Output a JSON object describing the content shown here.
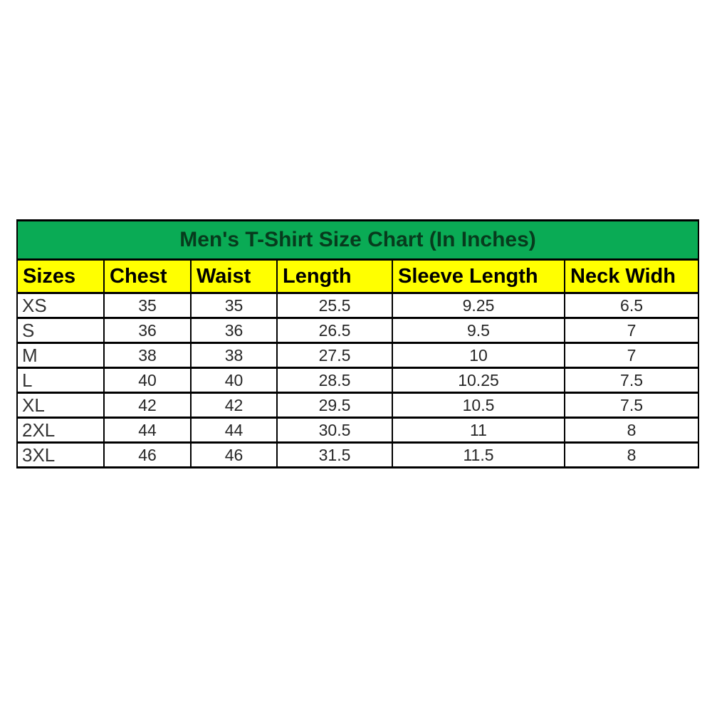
{
  "colors": {
    "title_bg": "#0aab55",
    "header_bg": "#ffff00",
    "border": "#000000",
    "title_text": "#000000",
    "data_text": "#262626",
    "page_bg": "#ffffff"
  },
  "chart_data": {
    "type": "table",
    "title": "Men's T-Shirt Size Chart (In Inches)",
    "columns": [
      "Sizes",
      "Chest",
      "Waist",
      "Length",
      "Sleeve Length",
      "Neck Widh"
    ],
    "rows": [
      [
        "XS",
        "35",
        "35",
        "25.5",
        "9.25",
        "6.5"
      ],
      [
        "S",
        "36",
        "36",
        "26.5",
        "9.5",
        "7"
      ],
      [
        "M",
        "38",
        "38",
        "27.5",
        "10",
        "7"
      ],
      [
        "L",
        "40",
        "40",
        "28.5",
        "10.25",
        "7.5"
      ],
      [
        "XL",
        "42",
        "42",
        "29.5",
        "10.5",
        "7.5"
      ],
      [
        "2XL",
        "44",
        "44",
        "30.5",
        "11",
        "8"
      ],
      [
        "3XL",
        "46",
        "46",
        "31.5",
        "11.5",
        "8"
      ]
    ],
    "layout": {
      "grid": true,
      "title_row_background": "#0aab55",
      "header_row_background": "#ffff00",
      "units": "inches"
    }
  }
}
